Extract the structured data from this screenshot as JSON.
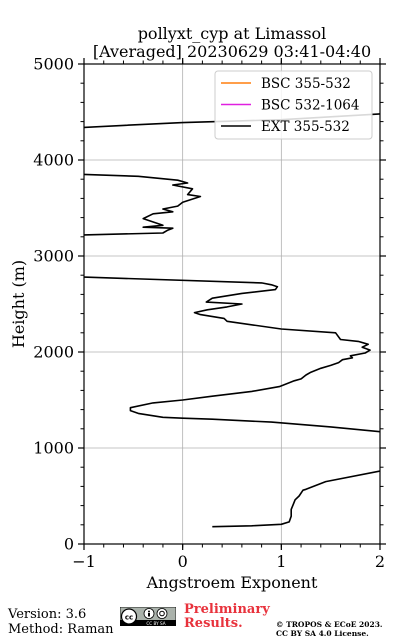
{
  "chart_data": {
    "type": "line",
    "title_line1": "pollyxt_cyp at Limassol",
    "title_line2": "[Averaged] 20230629 03:41-04:40",
    "xlabel": "Angstroem Exponent",
    "ylabel": "Height (m)",
    "xlim": [
      -1,
      2
    ],
    "ylim": [
      0,
      5000
    ],
    "xticks": [
      -1,
      0,
      1,
      2
    ],
    "yticks": [
      0,
      1000,
      2000,
      3000,
      4000,
      5000
    ],
    "grid": true,
    "legend_position": "top-right",
    "series": [
      {
        "name": "BSC 355-532",
        "color": "#ff7f0e",
        "x": [],
        "y": []
      },
      {
        "name": "BSC 532-1064",
        "color": "#e020e0",
        "x": [],
        "y": []
      },
      {
        "name": "EXT 355-532",
        "color": "#000000",
        "x": [
          0.3,
          0.7,
          1.0,
          1.08,
          1.1,
          1.1,
          1.12,
          1.14,
          1.18,
          1.22,
          1.25,
          1.45,
          2.0,
          2.0,
          2.1,
          1.5,
          0.9,
          0.3,
          0.0,
          -0.2,
          -0.45,
          -0.53,
          -0.53,
          -0.3,
          0.0,
          0.3,
          0.7,
          0.98,
          1.13,
          1.2,
          1.25,
          1.3,
          1.4,
          1.5,
          1.58,
          1.62,
          1.72,
          1.7,
          1.85,
          1.9,
          1.82,
          1.88,
          1.78,
          1.6,
          1.55,
          1.0,
          0.45,
          0.42,
          0.18,
          0.12,
          0.25,
          0.45,
          0.6,
          0.24,
          0.3,
          0.6,
          0.94,
          0.96,
          0.9,
          0.8,
          -1.0,
          -1.0,
          -0.2,
          -0.15,
          -0.1,
          -0.4,
          -0.2,
          -0.4,
          -0.3,
          -0.1,
          -0.2,
          -0.05,
          0.0,
          0.18,
          0.05,
          0.1,
          -0.1,
          0.05,
          -0.05,
          -0.45,
          -1.0,
          -1.0,
          -0.6,
          0.0,
          1.0,
          2.0
        ],
        "y": [
          180,
          190,
          205,
          230,
          290,
          360,
          410,
          460,
          500,
          560,
          570,
          650,
          760,
          1150,
          1160,
          1220,
          1270,
          1300,
          1310,
          1320,
          1360,
          1390,
          1420,
          1470,
          1500,
          1540,
          1590,
          1640,
          1700,
          1720,
          1760,
          1790,
          1830,
          1860,
          1890,
          1920,
          1940,
          1960,
          1990,
          2020,
          2050,
          2080,
          2110,
          2130,
          2200,
          2240,
          2320,
          2350,
          2390,
          2410,
          2440,
          2470,
          2500,
          2520,
          2560,
          2610,
          2650,
          2680,
          2700,
          2720,
          2780,
          3220,
          3240,
          3270,
          3290,
          3300,
          3320,
          3390,
          3440,
          3460,
          3490,
          3520,
          3560,
          3620,
          3640,
          3700,
          3740,
          3760,
          3790,
          3830,
          3850,
          4340,
          4360,
          4390,
          4420,
          4480
        ]
      }
    ]
  },
  "footer": {
    "version": "Version: 3.6",
    "method": "Method: Raman",
    "license_badge": "CC BY SA",
    "preliminary_line1": "Preliminary",
    "preliminary_line2": "Results.",
    "copyright_line1": "© TROPOS & ECoE 2023.",
    "copyright_line2": "CC BY SA 4.0 License."
  }
}
